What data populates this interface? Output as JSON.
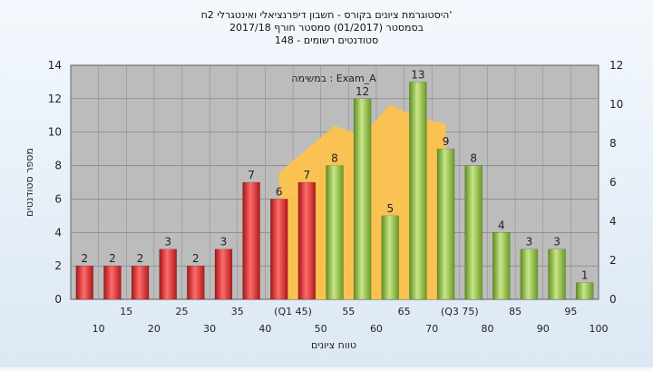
{
  "chart_data": {
    "type": "bar",
    "title_lines": [
      "היסטוגרמת ציונים בקורס - חשבון דיפרנציאלי ואינטגרלי 2ח'",
      "בסמסטר  (01/2017)  סמסטר חורף  2017/18",
      "148 - סטודנטים רשומים"
    ],
    "xlabel": "טווח ציונים",
    "ylabel": "מספר סטודנטים",
    "categories": [
      "10",
      "15",
      "20",
      "25",
      "30",
      "35",
      "40",
      "(Q1 45)",
      "50",
      "55",
      "60",
      "65",
      "70",
      "(Q3 75)",
      "80",
      "85",
      "90",
      "95",
      "100"
    ],
    "values": [
      2,
      2,
      2,
      3,
      2,
      3,
      7,
      6,
      7,
      8,
      12,
      5,
      13,
      9,
      8,
      4,
      3,
      3,
      1
    ],
    "bar_color_groups": [
      "red",
      "red",
      "red",
      "red",
      "red",
      "red",
      "red",
      "red",
      "red",
      "green",
      "green",
      "green",
      "green",
      "green",
      "green",
      "green",
      "green",
      "green",
      "green"
    ],
    "ylim": [
      0,
      14
    ],
    "y_ticks": [
      0,
      2,
      4,
      6,
      8,
      10,
      12,
      14
    ],
    "y2lim": [
      0,
      12
    ],
    "y2_ticks": [
      0,
      2,
      4,
      6,
      8,
      10,
      12
    ],
    "annotation": "במשימה : Exam_A",
    "area_series": {
      "x": [
        "(Q1 45)",
        "55",
        "60",
        "65",
        "70",
        "(Q3 75)"
      ],
      "values": [
        6.5,
        8.9,
        8.4,
        10,
        9.3,
        9
      ]
    },
    "grid": true,
    "colors": {
      "red_bar": "#e03030",
      "green_bar": "#8cbb3a",
      "area": "#ffc24a",
      "plot_bg": "#bcbcbc"
    }
  }
}
